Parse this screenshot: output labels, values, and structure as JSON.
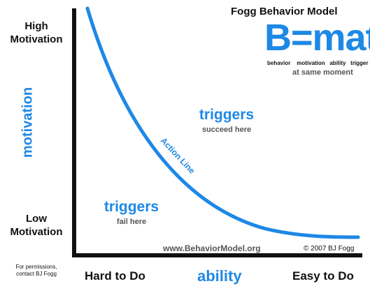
{
  "title": "Fogg Behavior Model",
  "formula": {
    "text": "B=mat",
    "legend": [
      "behavior",
      "motivation",
      "ability",
      "trigger"
    ],
    "note": "at same moment"
  },
  "y_axis": {
    "high_label_line1": "High",
    "high_label_line2": "Motivation",
    "low_label_line1": "Low",
    "low_label_line2": "Motivation",
    "title": "motivation"
  },
  "x_axis": {
    "left_label": "Hard to Do",
    "right_label": "Easy to Do",
    "title": "ability"
  },
  "curve_label": "Action Line",
  "zones": {
    "upper": {
      "title": "triggers",
      "subtitle": "succeed here"
    },
    "lower": {
      "title": "triggers",
      "subtitle": "fail here"
    }
  },
  "website": "www.BehaviorModel.org",
  "copyright": "© 2007 BJ Fogg",
  "permissions": {
    "line1": "For permissions,",
    "line2": "contact BJ Fogg"
  },
  "colors": {
    "accent": "#1e88e5",
    "axis": "#111111"
  }
}
